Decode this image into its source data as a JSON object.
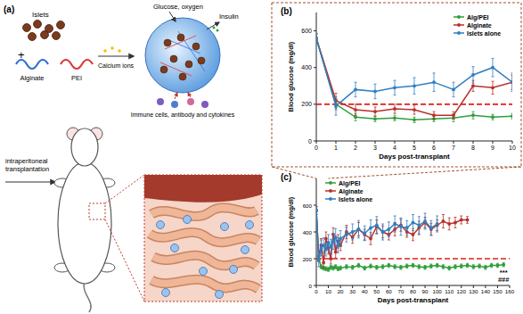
{
  "schematic": {
    "panel_label": "(a)",
    "islets": "Islets",
    "plus": "+",
    "alginate": "Alginate",
    "pei": "PEI",
    "calcium": "Calcium ions",
    "inputs": "Glucose, oxygen",
    "output": "Insulin",
    "immune": "Immune cells, antibody and cytokines",
    "route": "intraperitoneal transplantation"
  },
  "chart_data": [
    {
      "type": "line",
      "title": "(b)",
      "x_label": "Days post-transplant",
      "y_label": "Blood glucose (mg/dl)",
      "xlim": [
        0,
        10
      ],
      "xticks": [
        0,
        1,
        2,
        3,
        4,
        5,
        6,
        7,
        8,
        9,
        10
      ],
      "ylim": [
        0,
        700
      ],
      "yticks": [
        0,
        200,
        400,
        600
      ],
      "grid": false,
      "legend": "upper right",
      "reference_line": {
        "value": 200,
        "color": "#e0201b",
        "line_style": "dashed"
      },
      "series": [
        {
          "name": "Alg/PEI",
          "color": "#2e9e3a",
          "marker": "circle",
          "x": [
            0,
            1,
            2,
            3,
            4,
            5,
            6,
            7,
            8,
            9,
            10
          ],
          "values": [
            560,
            200,
            130,
            120,
            125,
            115,
            120,
            125,
            140,
            130,
            135
          ],
          "errors": [
            25,
            30,
            20,
            15,
            15,
            15,
            15,
            20,
            20,
            15,
            15
          ]
        },
        {
          "name": "Alginate",
          "color": "#b8302a",
          "marker": "circle",
          "x": [
            0,
            1,
            2,
            3,
            4,
            5,
            6,
            7,
            8,
            9,
            10
          ],
          "values": [
            560,
            220,
            170,
            160,
            175,
            170,
            140,
            140,
            300,
            290,
            320
          ],
          "errors": [
            25,
            40,
            30,
            25,
            25,
            25,
            20,
            20,
            30,
            35,
            40
          ]
        },
        {
          "name": "Islets alone",
          "color": "#2f7fc1",
          "marker": "circle",
          "x": [
            0,
            1,
            2,
            3,
            4,
            5,
            6,
            7,
            8,
            9,
            10
          ],
          "values": [
            560,
            190,
            280,
            270,
            290,
            300,
            320,
            280,
            360,
            400,
            320
          ],
          "errors": [
            25,
            50,
            40,
            40,
            40,
            45,
            50,
            40,
            45,
            50,
            50
          ]
        }
      ]
    },
    {
      "type": "line",
      "title": "(c)",
      "x_label": "Days post-transplant",
      "y_label": "Blood glucose (mg/dl)",
      "xlim": [
        0,
        160
      ],
      "xticks": [
        0,
        10,
        20,
        30,
        40,
        50,
        60,
        70,
        80,
        90,
        100,
        110,
        120,
        130,
        140,
        150,
        160
      ],
      "ylim": [
        0,
        800
      ],
      "yticks": [
        0,
        200,
        400,
        600
      ],
      "grid": false,
      "legend": "upper left",
      "reference_line": {
        "value": 200,
        "color": "#e0201b",
        "line_style": "dashed"
      },
      "annotations": [
        "***",
        "###"
      ],
      "series": [
        {
          "name": "Alg/PEI",
          "color": "#2e9e3a",
          "marker": "circle",
          "x": [
            0,
            2,
            4,
            6,
            8,
            10,
            12,
            14,
            16,
            18,
            20,
            25,
            30,
            35,
            40,
            45,
            50,
            55,
            60,
            65,
            70,
            75,
            80,
            85,
            90,
            95,
            100,
            105,
            110,
            115,
            120,
            125,
            130,
            135,
            140,
            145,
            150,
            155
          ],
          "values": [
            560,
            200,
            140,
            130,
            125,
            120,
            135,
            130,
            140,
            125,
            130,
            140,
            135,
            150,
            130,
            145,
            135,
            140,
            150,
            140,
            135,
            145,
            150,
            140,
            135,
            145,
            150,
            140,
            130,
            140,
            145,
            150,
            140,
            145,
            135,
            150,
            150,
            155
          ],
          "errors": [
            30,
            20,
            15,
            15,
            15,
            15,
            15,
            15,
            15,
            15,
            15,
            15,
            15,
            15,
            15,
            15,
            15,
            15,
            15,
            15,
            15,
            15,
            15,
            15,
            15,
            15,
            15,
            15,
            15,
            15,
            15,
            15,
            15,
            15,
            15,
            15,
            15,
            15
          ]
        },
        {
          "name": "Alginate",
          "color": "#b8302a",
          "marker": "circle",
          "x": [
            0,
            2,
            4,
            6,
            8,
            10,
            12,
            14,
            16,
            18,
            20,
            25,
            30,
            35,
            40,
            45,
            50,
            55,
            60,
            65,
            70,
            75,
            80,
            85,
            90,
            95,
            100,
            105,
            110,
            115,
            120,
            125
          ],
          "values": [
            560,
            220,
            300,
            170,
            350,
            280,
            200,
            380,
            250,
            330,
            300,
            400,
            360,
            420,
            380,
            350,
            440,
            400,
            380,
            420,
            450,
            400,
            380,
            430,
            470,
            420,
            450,
            480,
            460,
            470,
            490,
            490
          ],
          "errors": [
            30,
            40,
            50,
            40,
            50,
            45,
            40,
            50,
            45,
            50,
            40,
            50,
            45,
            50,
            40,
            45,
            50,
            45,
            40,
            50,
            45,
            40,
            45,
            50,
            40,
            45,
            40,
            50,
            45,
            40,
            30,
            25
          ]
        },
        {
          "name": "Islets alone",
          "color": "#2f7fc1",
          "marker": "circle",
          "x": [
            0,
            2,
            4,
            6,
            8,
            10,
            12,
            14,
            16,
            18,
            20,
            25,
            30,
            35,
            40,
            45,
            50,
            55,
            60,
            65,
            70,
            75,
            80,
            85,
            90,
            95,
            100
          ],
          "values": [
            560,
            190,
            280,
            300,
            270,
            320,
            290,
            330,
            360,
            300,
            350,
            380,
            400,
            420,
            390,
            430,
            450,
            400,
            420,
            460,
            440,
            430,
            470,
            450,
            480,
            430,
            460
          ],
          "errors": [
            30,
            50,
            60,
            55,
            50,
            60,
            55,
            60,
            65,
            55,
            60,
            55,
            60,
            65,
            55,
            60,
            65,
            60,
            55,
            60,
            65,
            55,
            60,
            65,
            60,
            55,
            60
          ]
        }
      ]
    }
  ]
}
